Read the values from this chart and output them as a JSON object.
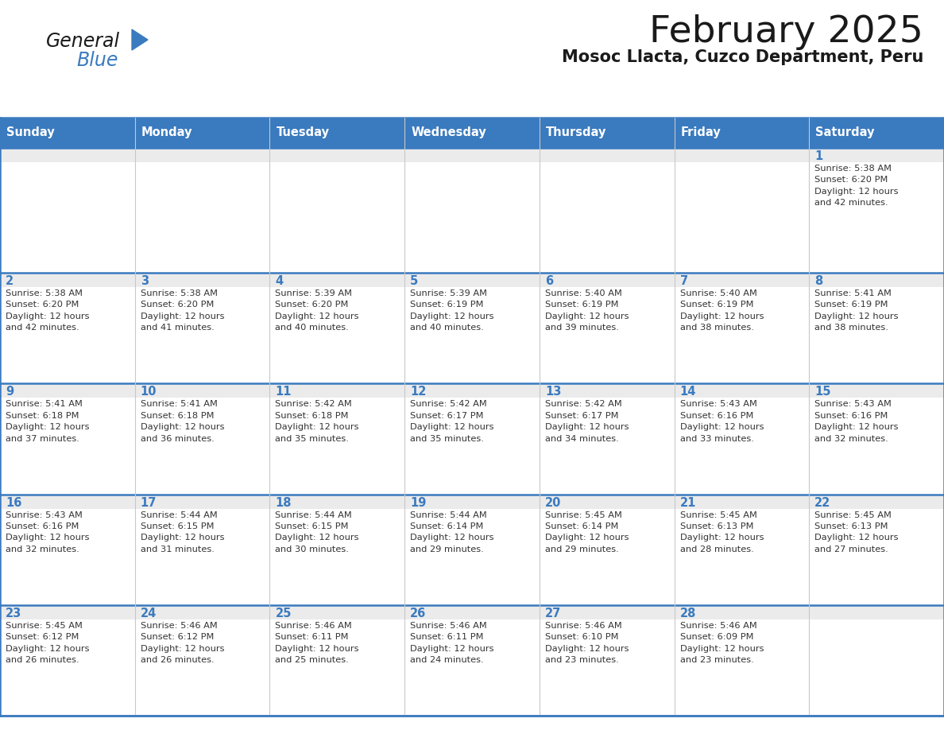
{
  "title": "February 2025",
  "subtitle": "Mosoc Llacta, Cuzco Department, Peru",
  "header_color": "#3a7abf",
  "header_text_color": "#ffffff",
  "cell_bg_white": "#ffffff",
  "cell_bg_light": "#f0f0f0",
  "day_number_color": "#3a7abf",
  "info_text_color": "#333333",
  "border_color": "#3a7abf",
  "divider_color": "#3a7abf",
  "days_of_week": [
    "Sunday",
    "Monday",
    "Tuesday",
    "Wednesday",
    "Thursday",
    "Friday",
    "Saturday"
  ],
  "logo_general_color": "#1a1a1a",
  "logo_blue_color": "#3a7abf",
  "logo_triangle_color": "#3a7abf",
  "weeks": [
    [
      {
        "day": 0,
        "info": ""
      },
      {
        "day": 0,
        "info": ""
      },
      {
        "day": 0,
        "info": ""
      },
      {
        "day": 0,
        "info": ""
      },
      {
        "day": 0,
        "info": ""
      },
      {
        "day": 0,
        "info": ""
      },
      {
        "day": 1,
        "info": "Sunrise: 5:38 AM\nSunset: 6:20 PM\nDaylight: 12 hours\nand 42 minutes."
      }
    ],
    [
      {
        "day": 2,
        "info": "Sunrise: 5:38 AM\nSunset: 6:20 PM\nDaylight: 12 hours\nand 42 minutes."
      },
      {
        "day": 3,
        "info": "Sunrise: 5:38 AM\nSunset: 6:20 PM\nDaylight: 12 hours\nand 41 minutes."
      },
      {
        "day": 4,
        "info": "Sunrise: 5:39 AM\nSunset: 6:20 PM\nDaylight: 12 hours\nand 40 minutes."
      },
      {
        "day": 5,
        "info": "Sunrise: 5:39 AM\nSunset: 6:19 PM\nDaylight: 12 hours\nand 40 minutes."
      },
      {
        "day": 6,
        "info": "Sunrise: 5:40 AM\nSunset: 6:19 PM\nDaylight: 12 hours\nand 39 minutes."
      },
      {
        "day": 7,
        "info": "Sunrise: 5:40 AM\nSunset: 6:19 PM\nDaylight: 12 hours\nand 38 minutes."
      },
      {
        "day": 8,
        "info": "Sunrise: 5:41 AM\nSunset: 6:19 PM\nDaylight: 12 hours\nand 38 minutes."
      }
    ],
    [
      {
        "day": 9,
        "info": "Sunrise: 5:41 AM\nSunset: 6:18 PM\nDaylight: 12 hours\nand 37 minutes."
      },
      {
        "day": 10,
        "info": "Sunrise: 5:41 AM\nSunset: 6:18 PM\nDaylight: 12 hours\nand 36 minutes."
      },
      {
        "day": 11,
        "info": "Sunrise: 5:42 AM\nSunset: 6:18 PM\nDaylight: 12 hours\nand 35 minutes."
      },
      {
        "day": 12,
        "info": "Sunrise: 5:42 AM\nSunset: 6:17 PM\nDaylight: 12 hours\nand 35 minutes."
      },
      {
        "day": 13,
        "info": "Sunrise: 5:42 AM\nSunset: 6:17 PM\nDaylight: 12 hours\nand 34 minutes."
      },
      {
        "day": 14,
        "info": "Sunrise: 5:43 AM\nSunset: 6:16 PM\nDaylight: 12 hours\nand 33 minutes."
      },
      {
        "day": 15,
        "info": "Sunrise: 5:43 AM\nSunset: 6:16 PM\nDaylight: 12 hours\nand 32 minutes."
      }
    ],
    [
      {
        "day": 16,
        "info": "Sunrise: 5:43 AM\nSunset: 6:16 PM\nDaylight: 12 hours\nand 32 minutes."
      },
      {
        "day": 17,
        "info": "Sunrise: 5:44 AM\nSunset: 6:15 PM\nDaylight: 12 hours\nand 31 minutes."
      },
      {
        "day": 18,
        "info": "Sunrise: 5:44 AM\nSunset: 6:15 PM\nDaylight: 12 hours\nand 30 minutes."
      },
      {
        "day": 19,
        "info": "Sunrise: 5:44 AM\nSunset: 6:14 PM\nDaylight: 12 hours\nand 29 minutes."
      },
      {
        "day": 20,
        "info": "Sunrise: 5:45 AM\nSunset: 6:14 PM\nDaylight: 12 hours\nand 29 minutes."
      },
      {
        "day": 21,
        "info": "Sunrise: 5:45 AM\nSunset: 6:13 PM\nDaylight: 12 hours\nand 28 minutes."
      },
      {
        "day": 22,
        "info": "Sunrise: 5:45 AM\nSunset: 6:13 PM\nDaylight: 12 hours\nand 27 minutes."
      }
    ],
    [
      {
        "day": 23,
        "info": "Sunrise: 5:45 AM\nSunset: 6:12 PM\nDaylight: 12 hours\nand 26 minutes."
      },
      {
        "day": 24,
        "info": "Sunrise: 5:46 AM\nSunset: 6:12 PM\nDaylight: 12 hours\nand 26 minutes."
      },
      {
        "day": 25,
        "info": "Sunrise: 5:46 AM\nSunset: 6:11 PM\nDaylight: 12 hours\nand 25 minutes."
      },
      {
        "day": 26,
        "info": "Sunrise: 5:46 AM\nSunset: 6:11 PM\nDaylight: 12 hours\nand 24 minutes."
      },
      {
        "day": 27,
        "info": "Sunrise: 5:46 AM\nSunset: 6:10 PM\nDaylight: 12 hours\nand 23 minutes."
      },
      {
        "day": 28,
        "info": "Sunrise: 5:46 AM\nSunset: 6:09 PM\nDaylight: 12 hours\nand 23 minutes."
      },
      {
        "day": 0,
        "info": ""
      }
    ]
  ]
}
